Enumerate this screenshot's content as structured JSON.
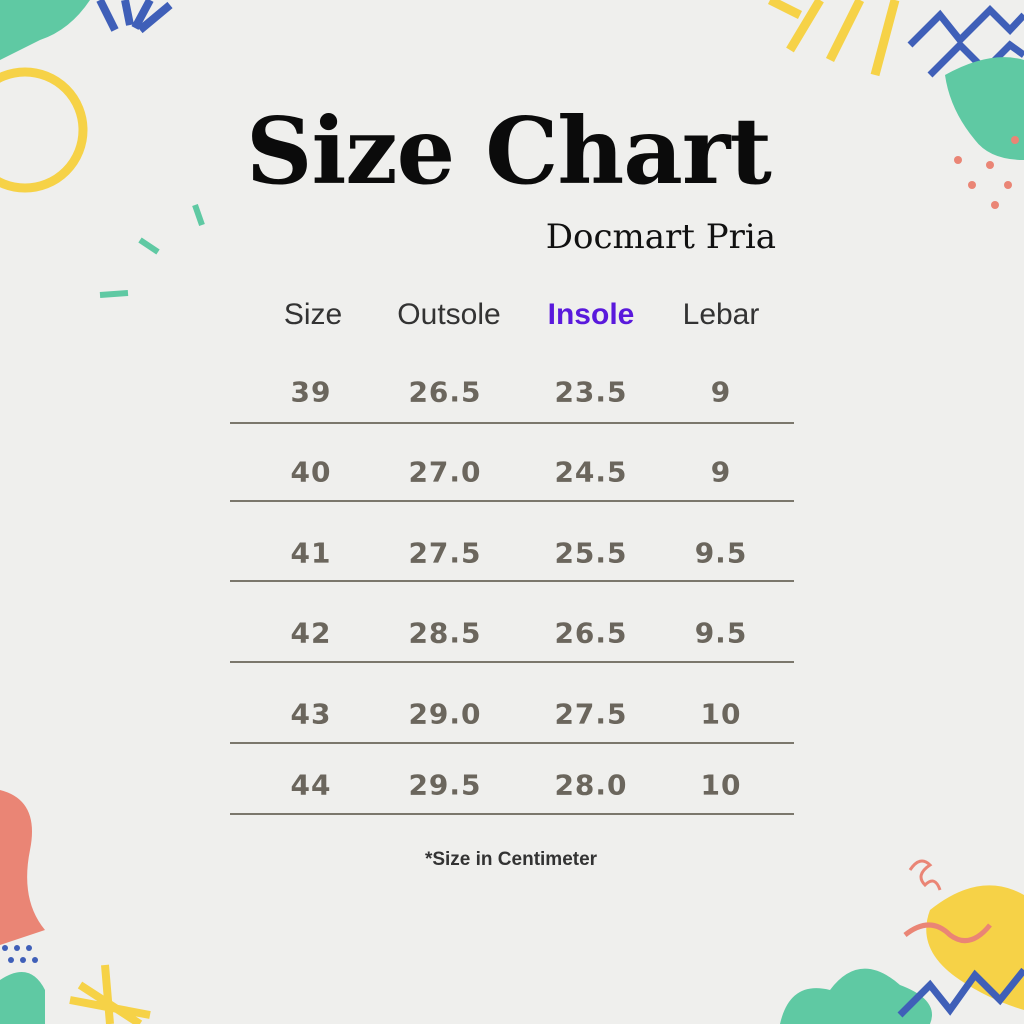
{
  "title": "Size Chart",
  "subtitle": "Docmart Pria",
  "table": {
    "headers": [
      "Size",
      "Outsole",
      "Insole",
      "Lebar"
    ],
    "highlighted_header": "Insole",
    "highlight_color": "#5a19dc",
    "rows": [
      [
        "39",
        "26.5",
        "23.5",
        "9"
      ],
      [
        "40",
        "27.0",
        "24.5",
        "9"
      ],
      [
        "41",
        "27.5",
        "25.5",
        "9.5"
      ],
      [
        "42",
        "28.5",
        "26.5",
        "9.5"
      ],
      [
        "43",
        "29.0",
        "27.5",
        "10"
      ],
      [
        "44",
        "29.5",
        "28.0",
        "10"
      ]
    ]
  },
  "footnote": "*Size in Centimeter",
  "colors": {
    "background": "#efefed",
    "teal": "#5fc9a3",
    "yellow": "#f6d247",
    "blue": "#3f5fb8",
    "coral": "#ea8575"
  }
}
